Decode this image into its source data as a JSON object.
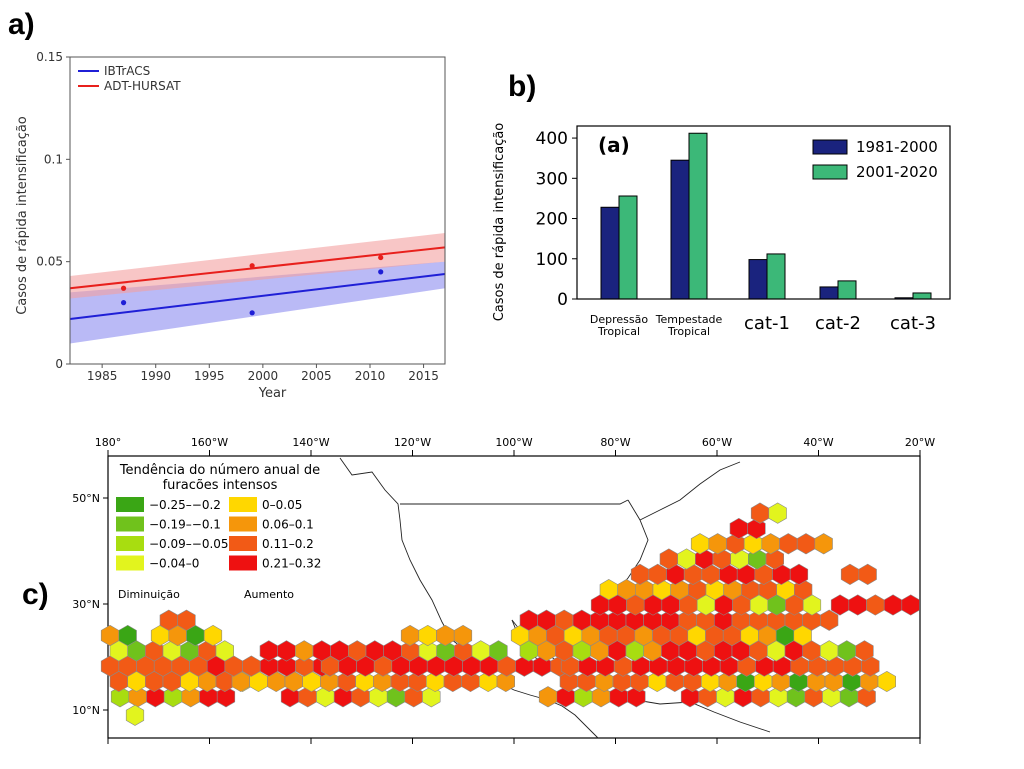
{
  "panel_labels": {
    "a": "a)",
    "b": "b)",
    "c": "c)"
  },
  "chart_data": [
    {
      "id": "a",
      "type": "line",
      "title": "",
      "xlabel": "Year",
      "ylabel": "Casos de rápida intensificação",
      "xlim": [
        1982,
        2017
      ],
      "ylim": [
        0,
        0.15
      ],
      "xticks": [
        1985,
        1990,
        1995,
        2000,
        2005,
        2010,
        2015
      ],
      "yticks": [
        0,
        0.05,
        0.1,
        0.15
      ],
      "ytick_labels": [
        "0",
        "0.05",
        "0.1",
        "0.15"
      ],
      "legend_position": "top-left",
      "series": [
        {
          "name": "IBTrACS",
          "color": "#1f1fd6",
          "band_color": "#8c8cf0",
          "trend_x": [
            1982,
            2017
          ],
          "trend_y": [
            0.022,
            0.044
          ],
          "band_lower": [
            0.01,
            0.037
          ],
          "band_upper": [
            0.035,
            0.05
          ],
          "points": [
            [
              1987,
              0.03
            ],
            [
              1999,
              0.025
            ],
            [
              2011,
              0.045
            ]
          ]
        },
        {
          "name": "ADT-HURSAT",
          "color": "#e8201c",
          "band_color": "#f4a0a0",
          "trend_x": [
            1982,
            2017
          ],
          "trend_y": [
            0.037,
            0.057
          ],
          "band_lower": [
            0.032,
            0.05
          ],
          "band_upper": [
            0.043,
            0.064
          ],
          "points": [
            [
              1987,
              0.037
            ],
            [
              1999,
              0.048
            ],
            [
              2011,
              0.052
            ]
          ]
        }
      ]
    },
    {
      "id": "b",
      "type": "bar",
      "annotation": "(a)",
      "ylabel": "Casos de rápida intensificação",
      "ylim": [
        0,
        430
      ],
      "yticks": [
        0,
        100,
        200,
        300,
        400
      ],
      "categories": [
        "Depressão\nTropical",
        "Tempestade\nTropical",
        "cat-1",
        "cat-2",
        "cat-3"
      ],
      "legend_position": "top-right",
      "series": [
        {
          "name": "1981-2000",
          "color": "#1a237e",
          "values": [
            228,
            345,
            98,
            30,
            3
          ]
        },
        {
          "name": "2001-2020",
          "color": "#3cb878",
          "values": [
            256,
            412,
            112,
            45,
            15
          ]
        }
      ]
    },
    {
      "id": "c",
      "type": "heatmap",
      "legend_title": "Tendência do número anual de\nfuracões intensos",
      "legend_position": "top-left",
      "x_ticks": [
        "180°",
        "160°W",
        "140°W",
        "120°W",
        "100°W",
        "80°W",
        "60°W",
        "40°W",
        "20°W"
      ],
      "x_values": [
        -180,
        -160,
        -140,
        -120,
        -100,
        -80,
        -60,
        -40,
        -20
      ],
      "y_ticks": [
        "10°N",
        "30°N",
        "50°N"
      ],
      "y_values": [
        10,
        30,
        50
      ],
      "bins": [
        {
          "label": "−0.25–−0.2",
          "color": "#3aa615"
        },
        {
          "label": "−0.19–−0.1",
          "color": "#70c21c"
        },
        {
          "label": "−0.09–−0.05",
          "color": "#a8dd10"
        },
        {
          "label": "−0.04–0",
          "color": "#e2f41e"
        },
        {
          "label": "0–0.05",
          "color": "#ffd700"
        },
        {
          "label": "0.06–0.1",
          "color": "#f5960b"
        },
        {
          "label": "0.11–0.2",
          "color": "#f25a16"
        },
        {
          "label": "0.21–0.32",
          "color": "#ee1111"
        }
      ],
      "decrease_label": "Diminuição",
      "increase_label": "Aumento",
      "note": "per-hexagon trend values are placeholders matching the color pattern"
    }
  ]
}
